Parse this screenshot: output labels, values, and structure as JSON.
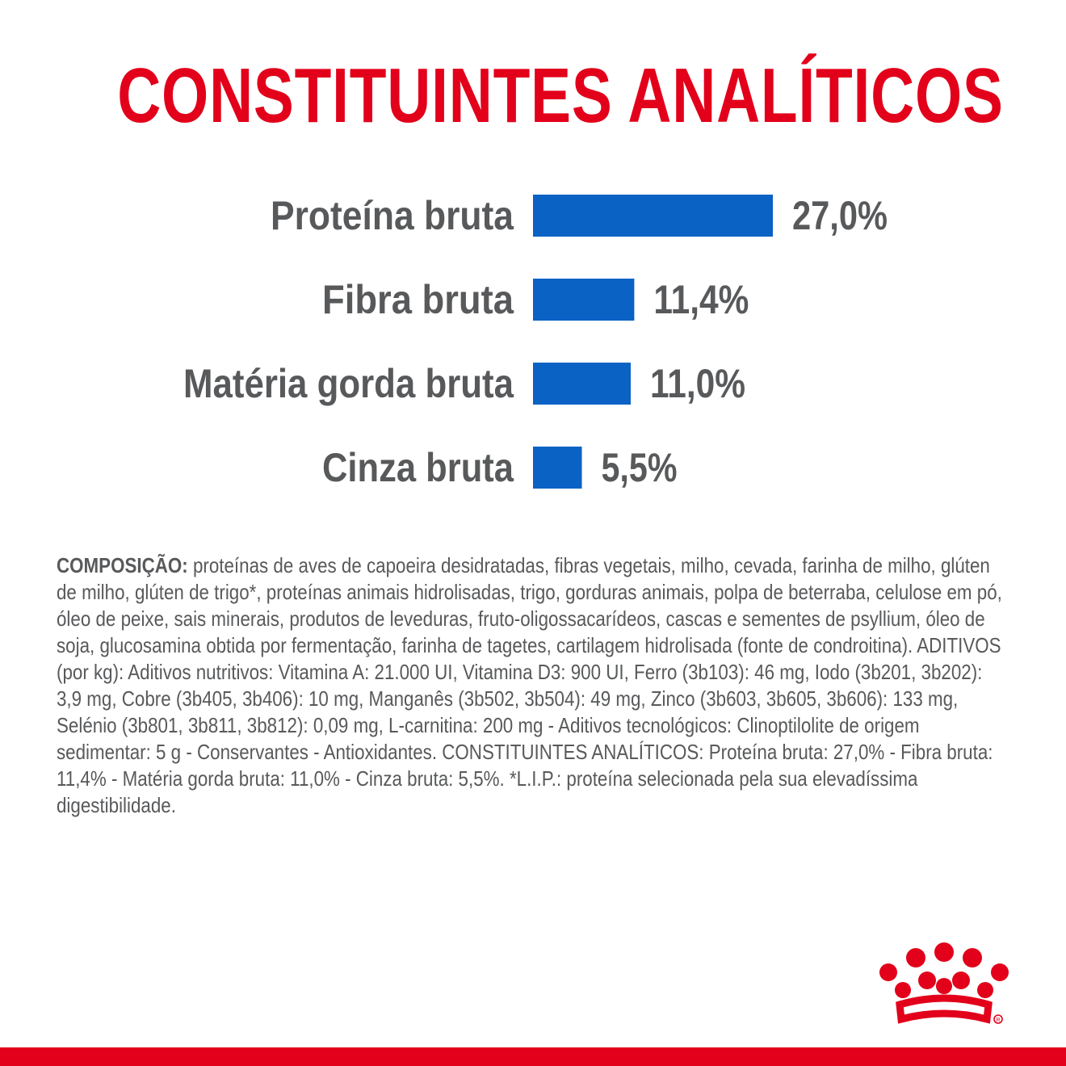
{
  "title": "CONSTITUINTES ANALÍTICOS",
  "chart_data": {
    "type": "bar",
    "orientation": "horizontal",
    "categories": [
      "Proteína bruta",
      "Fibra bruta",
      "Matéria gorda bruta",
      "Cinza bruta"
    ],
    "values": [
      27.0,
      11.4,
      11.0,
      5.5
    ],
    "value_labels": [
      "27,0%",
      "11,4%",
      "11,0%",
      "5,5%"
    ],
    "xlim": [
      0,
      27.0
    ],
    "grid": false,
    "legend": "none",
    "bar_color": "#0a62c4"
  },
  "composition": {
    "heading": "COMPOSIÇÃO:",
    "text": " proteínas de aves de capoeira desidratadas, fibras vegetais, milho, cevada, farinha de milho, glúten de milho, glúten de trigo*, proteínas animais hidrolisadas, trigo, gorduras animais, polpa de beterraba, celulose em pó, óleo de peixe, sais minerais, produtos de leveduras, fruto-oligossacarídeos, cascas e sementes de psyllium, óleo de soja, glucosamina obtida por fermentação, farinha de tagetes, cartilagem hidrolisada (fonte de condroitina). ADITIVOS (por kg): Aditivos nutritivos: Vitamina A: 21.000 UI, Vitamina D3: 900 UI, Ferro (3b103): 46 mg, Iodo (3b201, 3b202): 3,9 mg, Cobre (3b405, 3b406): 10 mg, Manganês (3b502, 3b504): 49 mg, Zinco (3b603, 3b605, 3b606): 133 mg, Selénio (3b801, 3b811, 3b812): 0,09 mg, L-carnitina: 200 mg - Aditivos tecnológicos: Clinoptilolite de origem sedimentar: 5 g - Conservantes - Antioxidantes. CONSTITUINTES ANALÍTICOS: Proteína bruta: 27,0% - Fibra bruta: 11,4% - Matéria gorda bruta: 11,0% - Cinza bruta: 5,5%. *L.I.P.: proteína selecionada pela sua elevadíssima digestibilidade."
  },
  "colors": {
    "brand_red": "#e2001a",
    "bar_blue": "#0a62c4",
    "text_gray": "#58595b"
  },
  "logo": {
    "icon": "crown-logo-icon"
  }
}
